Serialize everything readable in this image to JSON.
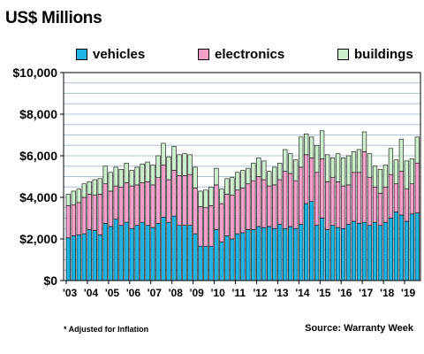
{
  "chart_data": {
    "type": "bar",
    "stacked": true,
    "title": "US$ Millions",
    "ylim": [
      0,
      10000
    ],
    "y_ticks": [
      0,
      2000,
      4000,
      6000,
      8000,
      10000
    ],
    "y_tick_labels": [
      "$0",
      "$2,000",
      "$4,000",
      "$6,000",
      "$8,000",
      "$10,000"
    ],
    "x_tick_labels": [
      "'03",
      "'04",
      "'05",
      "'06",
      "'07",
      "'08",
      "'09",
      "'10",
      "'11",
      "'12",
      "'13",
      "'14",
      "'15",
      "'16",
      "'17",
      "'18",
      "'19"
    ],
    "x_first_year": 2003,
    "periods_per_year": 4,
    "grid": true,
    "legend_position": "top",
    "series": [
      {
        "name": "vehicles",
        "color": "#1eb4e6",
        "values": [
          2050,
          2150,
          2200,
          2250,
          2450,
          2400,
          2200,
          2750,
          2600,
          2950,
          2650,
          2800,
          2500,
          2650,
          2800,
          2650,
          2550,
          2750,
          3050,
          2800,
          3100,
          2650,
          2650,
          2650,
          2250,
          1650,
          1650,
          1650,
          2450,
          1850,
          2150,
          2000,
          2250,
          2300,
          2450,
          2450,
          2600,
          2550,
          2600,
          2500,
          2700,
          2500,
          2600,
          2500,
          2700,
          3700,
          3800,
          2650,
          3000,
          2450,
          2650,
          2550,
          2500,
          2700,
          2850,
          2750,
          2800,
          2650,
          2800,
          2650,
          2800,
          3000,
          3300,
          3150,
          2850,
          3200,
          3250
        ]
      },
      {
        "name": "electronics",
        "color": "#f5a0c8",
        "values": [
          1550,
          1500,
          1550,
          1750,
          1700,
          1700,
          1950,
          1900,
          1700,
          1600,
          1850,
          1900,
          2050,
          1950,
          1900,
          2100,
          2050,
          2200,
          2500,
          2050,
          2200,
          2400,
          2400,
          2450,
          2200,
          1900,
          1850,
          1950,
          2150,
          1850,
          2000,
          2100,
          2100,
          2150,
          2200,
          2350,
          2400,
          2300,
          1950,
          2100,
          2150,
          2750,
          2550,
          2300,
          2750,
          2350,
          2100,
          2550,
          2850,
          2300,
          2300,
          2200,
          2050,
          1900,
          2350,
          2450,
          3400,
          2300,
          1700,
          1550,
          1700,
          2100,
          1350,
          2100,
          1550,
          1450,
          2400
        ]
      },
      {
        "name": "buildings",
        "color": "#ccf0cc",
        "values": [
          550,
          650,
          650,
          650,
          600,
          750,
          750,
          850,
          900,
          900,
          850,
          950,
          750,
          850,
          900,
          950,
          950,
          1050,
          1050,
          1100,
          1150,
          1000,
          1050,
          950,
          1000,
          750,
          850,
          900,
          800,
          700,
          750,
          850,
          850,
          850,
          750,
          850,
          900,
          900,
          700,
          850,
          800,
          1050,
          950,
          1000,
          1450,
          1000,
          1000,
          1300,
          1350,
          1300,
          950,
          1350,
          1350,
          1400,
          1000,
          1100,
          950,
          1150,
          1000,
          1150,
          1050,
          1250,
          1150,
          1550,
          1350,
          1200,
          1250
        ]
      }
    ],
    "notes": [
      "* Adjusted for Inflation",
      "Source: Warranty Week"
    ]
  }
}
